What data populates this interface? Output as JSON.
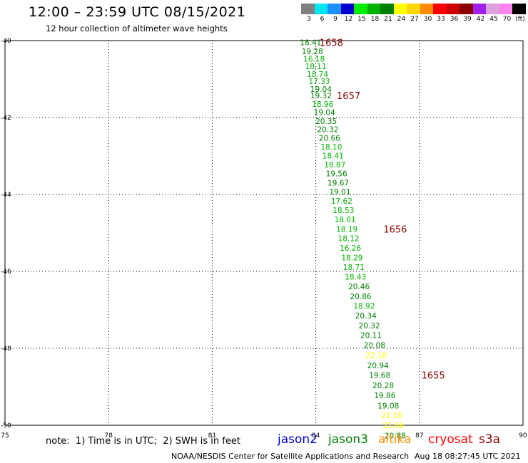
{
  "header": {
    "title": "12:00 – 23:59 UTC 08/15/2021",
    "subtitle": "12 hour collection of altimeter wave heights"
  },
  "colorbar": {
    "unit": "(ft)",
    "bins": [
      {
        "label": "3",
        "color": "#808080"
      },
      {
        "label": "6",
        "color": "#00e5ee"
      },
      {
        "label": "9",
        "color": "#1e90ff"
      },
      {
        "label": "12",
        "color": "#0000cd"
      },
      {
        "label": "15",
        "color": "#00ee00"
      },
      {
        "label": "18",
        "color": "#00b200"
      },
      {
        "label": "21",
        "color": "#008000"
      },
      {
        "label": "24",
        "color": "#ffff00"
      },
      {
        "label": "27",
        "color": "#ffd700"
      },
      {
        "label": "30",
        "color": "#ff8c00"
      },
      {
        "label": "33",
        "color": "#ff0000"
      },
      {
        "label": "36",
        "color": "#cd0000"
      },
      {
        "label": "39",
        "color": "#8b0000"
      },
      {
        "label": "42",
        "color": "#a020f0"
      },
      {
        "label": "45",
        "color": "#dda0dd"
      },
      {
        "label": "70",
        "color": "#ff82ee"
      },
      {
        "label": "",
        "color": "#000000"
      }
    ]
  },
  "chart_data": {
    "type": "scatter",
    "title": "12:00 – 23:59 UTC 08/15/2021",
    "subtitle": "12 hour collection of altimeter wave heights",
    "x_ticks": [
      "75",
      "78",
      "81",
      "84",
      "87",
      "90"
    ],
    "y_ticks": [
      "-40",
      "-42",
      "-44",
      "-46",
      "-48",
      "-50"
    ],
    "xlim": [
      75,
      90
    ],
    "ylim": [
      -50,
      -40
    ],
    "grid": true,
    "points": [
      {
        "lon": 83.85,
        "lat": -40.05,
        "label": "18.41",
        "color": "#008000"
      },
      {
        "lon": 83.9,
        "lat": -40.28,
        "label": "19.28",
        "color": "#008000"
      },
      {
        "lon": 83.95,
        "lat": -40.47,
        "label": "16.18",
        "color": "#00b200"
      },
      {
        "lon": 84.0,
        "lat": -40.67,
        "label": "18.11",
        "color": "#00b200"
      },
      {
        "lon": 84.05,
        "lat": -40.87,
        "label": "18.74",
        "color": "#00b200"
      },
      {
        "lon": 84.1,
        "lat": -41.06,
        "label": "17.33",
        "color": "#00b200"
      },
      {
        "lon": 84.15,
        "lat": -41.26,
        "label": "19.04",
        "color": "#008000"
      },
      {
        "lon": 84.15,
        "lat": -41.43,
        "label": "19.32",
        "color": "#008000"
      },
      {
        "lon": 84.2,
        "lat": -41.65,
        "label": "18.96",
        "color": "#00b200"
      },
      {
        "lon": 84.25,
        "lat": -41.86,
        "label": "19.04",
        "color": "#008000"
      },
      {
        "lon": 84.3,
        "lat": -42.09,
        "label": "20.35",
        "color": "#008000"
      },
      {
        "lon": 84.35,
        "lat": -42.31,
        "label": "20.32",
        "color": "#008000"
      },
      {
        "lon": 84.4,
        "lat": -42.53,
        "label": "20.66",
        "color": "#008000"
      },
      {
        "lon": 84.45,
        "lat": -42.76,
        "label": "18.10",
        "color": "#00b200"
      },
      {
        "lon": 84.5,
        "lat": -42.99,
        "label": "18.41",
        "color": "#00b200"
      },
      {
        "lon": 84.55,
        "lat": -43.22,
        "label": "18.87",
        "color": "#00b200"
      },
      {
        "lon": 84.6,
        "lat": -43.45,
        "label": "19.56",
        "color": "#008000"
      },
      {
        "lon": 84.65,
        "lat": -43.69,
        "label": "19.67",
        "color": "#008000"
      },
      {
        "lon": 84.7,
        "lat": -43.93,
        "label": "19.01",
        "color": "#008000"
      },
      {
        "lon": 84.75,
        "lat": -44.17,
        "label": "17.62",
        "color": "#00b200"
      },
      {
        "lon": 84.8,
        "lat": -44.41,
        "label": "18.53",
        "color": "#00b200"
      },
      {
        "lon": 84.85,
        "lat": -44.65,
        "label": "18.01",
        "color": "#00b200"
      },
      {
        "lon": 84.9,
        "lat": -44.9,
        "label": "18.19",
        "color": "#00b200"
      },
      {
        "lon": 84.95,
        "lat": -45.14,
        "label": "18.12",
        "color": "#00b200"
      },
      {
        "lon": 85.0,
        "lat": -45.39,
        "label": "16.26",
        "color": "#00b200"
      },
      {
        "lon": 85.05,
        "lat": -45.64,
        "label": "18.29",
        "color": "#00b200"
      },
      {
        "lon": 85.1,
        "lat": -45.89,
        "label": "18.71",
        "color": "#00b200"
      },
      {
        "lon": 85.15,
        "lat": -46.14,
        "label": "18.43",
        "color": "#00b200"
      },
      {
        "lon": 85.25,
        "lat": -46.39,
        "label": "20.46",
        "color": "#008000"
      },
      {
        "lon": 85.3,
        "lat": -46.65,
        "label": "20.86",
        "color": "#008000"
      },
      {
        "lon": 85.4,
        "lat": -46.9,
        "label": "18.92",
        "color": "#00b200"
      },
      {
        "lon": 85.45,
        "lat": -47.15,
        "label": "20.34",
        "color": "#008000"
      },
      {
        "lon": 85.55,
        "lat": -47.41,
        "label": "20.32",
        "color": "#008000"
      },
      {
        "lon": 85.6,
        "lat": -47.66,
        "label": "20.11",
        "color": "#008000"
      },
      {
        "lon": 85.7,
        "lat": -47.92,
        "label": "20.08",
        "color": "#008000"
      },
      {
        "lon": 85.75,
        "lat": -48.18,
        "label": "22.10",
        "color": "#ffff00"
      },
      {
        "lon": 85.8,
        "lat": -48.44,
        "label": "20.94",
        "color": "#008000"
      },
      {
        "lon": 85.85,
        "lat": -48.69,
        "label": "19.68",
        "color": "#008000"
      },
      {
        "lon": 85.95,
        "lat": -48.96,
        "label": "20.28",
        "color": "#008000"
      },
      {
        "lon": 86.0,
        "lat": -49.22,
        "label": "19.86",
        "color": "#008000"
      },
      {
        "lon": 86.1,
        "lat": -49.49,
        "label": "19.08",
        "color": "#008000"
      },
      {
        "lon": 86.2,
        "lat": -49.74,
        "label": "21.10",
        "color": "#ffff00"
      },
      {
        "lon": 86.25,
        "lat": -50.0,
        "label": "21.66",
        "color": "#ffff00"
      },
      {
        "lon": 86.3,
        "lat": -50.27,
        "label": "20.88",
        "color": "#008000"
      }
    ],
    "time_labels": [
      {
        "lon": 84.45,
        "lat": -40.05,
        "label": "1658"
      },
      {
        "lon": 84.95,
        "lat": -41.43,
        "label": "1657"
      },
      {
        "lon": 86.3,
        "lat": -44.9,
        "label": "1656"
      },
      {
        "lon": 87.4,
        "lat": -48.69,
        "label": "1655"
      }
    ],
    "time_label_color": "#8b0000"
  },
  "footer": {
    "note": "note:  1) Time is in UTC;  2) SWH is in feet",
    "satellites": [
      {
        "name": "jason2",
        "color": "#0000cd"
      },
      {
        "name": "jason3",
        "color": "#008000"
      },
      {
        "name": "altika",
        "color": "#ff8c00"
      },
      {
        "name": "cryosat",
        "color": "#ff0000"
      },
      {
        "name": "s3a",
        "color": "#8b0000"
      }
    ],
    "credit": "NOAA/NESDIS Center for Satellite Applications and Research",
    "timestamp": "Aug 18 08:27:45 UTC 2021"
  }
}
